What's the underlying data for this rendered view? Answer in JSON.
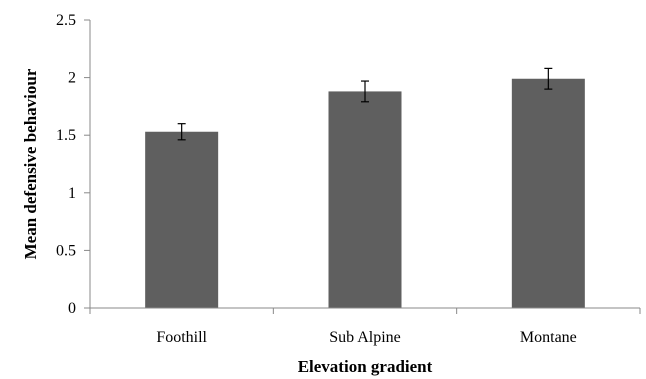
{
  "chart_data": {
    "type": "bar",
    "title": "",
    "xlabel": "Elevation gradient",
    "ylabel": "Mean defensive behaviour",
    "categories": [
      "Foothill",
      "Sub Alpine",
      "Montane"
    ],
    "values": [
      1.53,
      1.88,
      1.99
    ],
    "error": [
      0.07,
      0.09,
      0.09
    ],
    "ylim": [
      0,
      2.5
    ],
    "yticks": [
      0,
      0.5,
      1,
      1.5,
      2,
      2.5
    ],
    "ytick_labels": [
      "0",
      "0.5",
      "1",
      "1.5",
      "2",
      "2.5"
    ],
    "grid": false,
    "legend": "none",
    "bar_color": "#5f5f5f"
  }
}
